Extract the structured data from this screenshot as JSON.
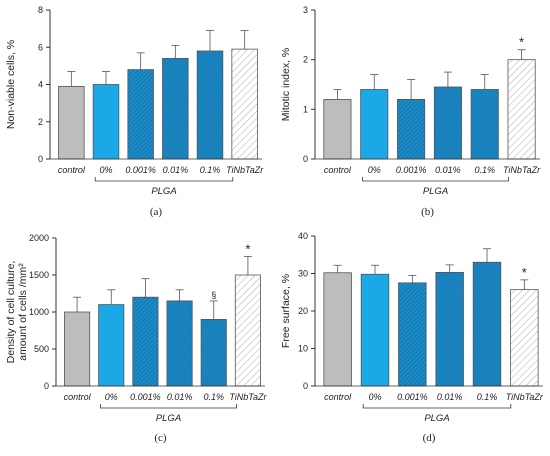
{
  "chart_data": [
    {
      "type": "bar",
      "panel_label": "(a)",
      "ylabel": "Non-viable cells, %",
      "categories": [
        "control",
        "0%",
        "0.001%",
        "0.01%",
        "0.1%",
        "TiNbTaZr"
      ],
      "group_label": "PLGA",
      "group_spans": [
        "0%",
        "0.1%"
      ],
      "values": [
        3.9,
        4.0,
        4.8,
        5.4,
        5.8,
        5.9
      ],
      "errors": [
        0.8,
        0.7,
        0.9,
        0.7,
        1.1,
        1.0
      ],
      "markers": [
        "",
        "",
        "",
        "",
        "",
        ""
      ],
      "ylim": [
        0,
        8
      ],
      "yticks": [
        0,
        2,
        4,
        6,
        8
      ]
    },
    {
      "type": "bar",
      "panel_label": "(b)",
      "ylabel": "Mitotic index, %",
      "categories": [
        "control",
        "0%",
        "0.001%",
        "0.01%",
        "0.1%",
        "TiNbTaZr"
      ],
      "group_label": "PLGA",
      "group_spans": [
        "0%",
        "0.1%"
      ],
      "values": [
        1.2,
        1.4,
        1.2,
        1.45,
        1.4,
        2.0
      ],
      "errors": [
        0.2,
        0.3,
        0.4,
        0.3,
        0.3,
        0.2
      ],
      "markers": [
        "",
        "",
        "",
        "",
        "",
        "*"
      ],
      "ylim": [
        0,
        3
      ],
      "yticks": [
        0,
        1,
        2,
        3
      ]
    },
    {
      "type": "bar",
      "panel_label": "(c)",
      "ylabel": [
        "Density of cell culture,",
        "amount of cells /mm²"
      ],
      "categories": [
        "control",
        "0%",
        "0.001%",
        "0.01%",
        "0.1%",
        "TiNbTaZr"
      ],
      "group_label": "PLGA",
      "group_spans": [
        "0%",
        "0.1%"
      ],
      "values": [
        1000,
        1100,
        1200,
        1150,
        900,
        1500
      ],
      "errors": [
        200,
        200,
        250,
        150,
        250,
        250
      ],
      "markers": [
        "",
        "",
        "",
        "",
        "§",
        "*"
      ],
      "ylim": [
        0,
        2000
      ],
      "yticks": [
        0,
        500,
        1000,
        1500,
        2000
      ]
    },
    {
      "type": "bar",
      "panel_label": "(d)",
      "ylabel": "Free surface, %",
      "categories": [
        "control",
        "0%",
        "0.001%",
        "0.01%",
        "0.1%",
        "TiNbTaZr"
      ],
      "group_label": "PLGA",
      "group_spans": [
        "0%",
        "0.1%"
      ],
      "values": [
        30.2,
        29.8,
        27.5,
        30.3,
        33.0,
        25.7
      ],
      "errors": [
        2.0,
        2.4,
        2.0,
        2.0,
        3.6,
        2.6
      ],
      "markers": [
        "",
        "",
        "",
        "",
        "",
        "*"
      ],
      "ylim": [
        0,
        40
      ],
      "yticks": [
        0,
        10,
        20,
        30,
        40
      ]
    }
  ],
  "colors": {
    "control": "#bdbdbd",
    "light_blue": "#1aa9e6",
    "hatch_blue": "#1a8cc8",
    "hatch_blue_dark": "#155f96",
    "bar_stroke": "#555555",
    "axis": "#333333"
  },
  "bar_styles": [
    "solid-grey",
    "solid-blue",
    "hatch-blue",
    "hatch-blue-dense",
    "hatch-blue-dense",
    "hatch-white"
  ]
}
